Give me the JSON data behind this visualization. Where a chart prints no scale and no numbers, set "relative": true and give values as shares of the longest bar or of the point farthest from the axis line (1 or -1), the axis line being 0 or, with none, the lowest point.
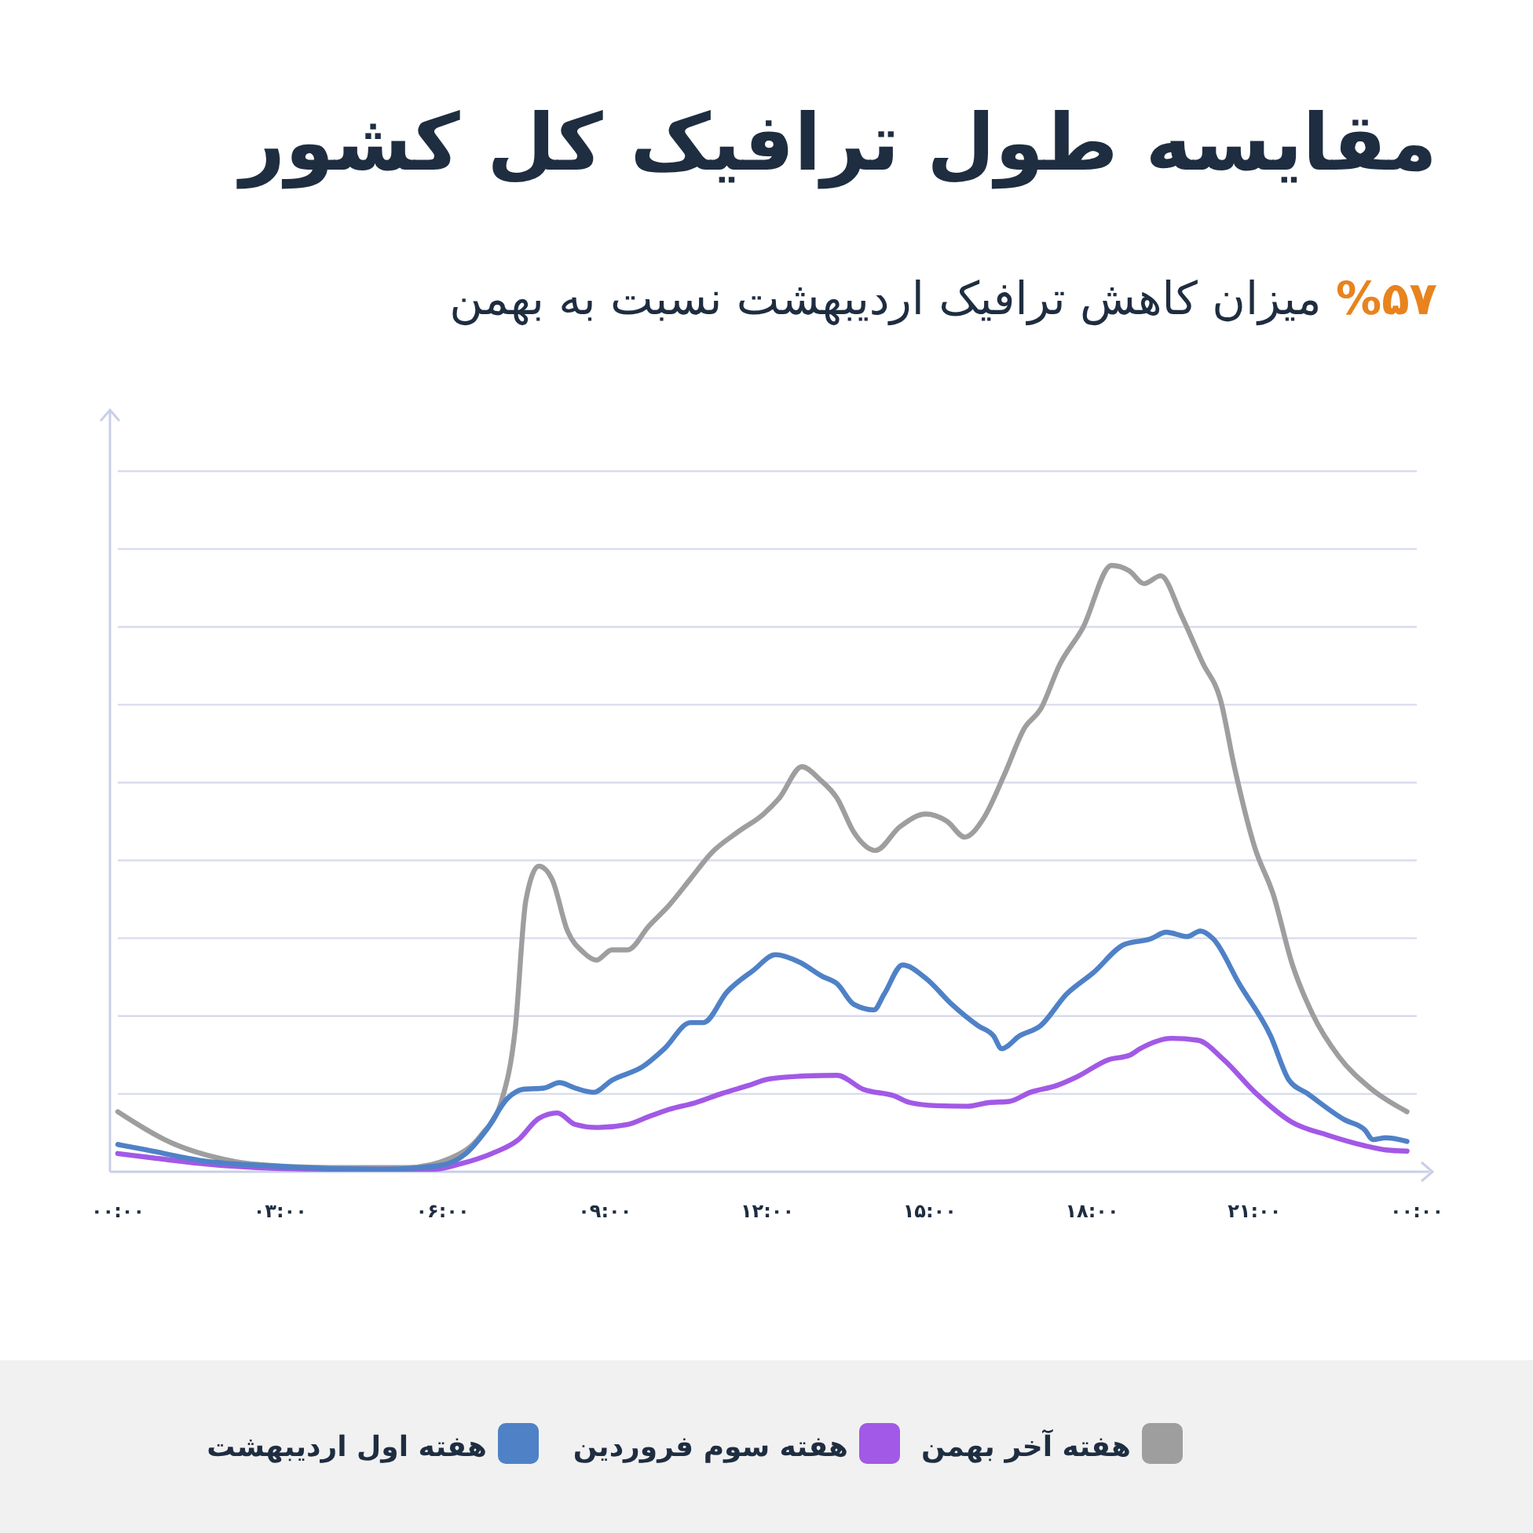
{
  "chart_data": {
    "type": "line",
    "title": "مقایسه طول ترافیک کل کشور",
    "subtitle": "%۵۷ میزان کاهش ترافیک اردیبهشت نسبت به بهمن",
    "relative": true,
    "grid": true,
    "legend": "bottom",
    "marker": "none",
    "line_style": "solid",
    "tick_labels": "x",
    "xlim": [
      0,
      24
    ],
    "xticks": [
      {
        "value": 0,
        "label": "۰۰:۰۰"
      },
      {
        "value": 3,
        "label": "۰۳:۰۰"
      },
      {
        "value": 6,
        "label": "۰۶:۰۰"
      },
      {
        "value": 9,
        "label": "۰۹:۰۰"
      },
      {
        "value": 12,
        "label": "۱۲:۰۰"
      },
      {
        "value": 15,
        "label": "۱۵:۰۰"
      },
      {
        "value": 18,
        "label": "۱۸:۰۰"
      },
      {
        "value": 21,
        "label": "۲۱:۰۰"
      },
      {
        "value": 24,
        "label": "۰۰:۰۰"
      }
    ],
    "series": [
      {
        "name": "هفته آخر بهمن",
        "color": "#9e9e9e",
        "x": [
          0,
          1.01,
          1.79,
          2.46,
          3.91,
          5.36,
          6.14,
          6.71,
          7.1,
          7.34,
          7.54,
          7.78,
          8.02,
          8.31,
          8.6,
          8.84,
          9.13,
          9.42,
          9.81,
          10.19,
          10.58,
          10.97,
          11.45,
          11.93,
          12.22,
          12.64,
          12.97,
          13.29,
          13.6,
          14.0,
          14.45,
          14.93,
          15.32,
          15.65,
          15.99,
          16.38,
          16.76,
          17.05,
          17.4,
          17.83,
          18.36,
          18.69,
          18.96,
          19.27,
          19.65,
          20.04,
          20.38,
          20.62,
          21.01,
          21.35,
          21.69,
          22.08,
          22.56,
          23.14,
          23.82
        ],
        "values": [
          0.099,
          0.047,
          0.024,
          0.013,
          0.007,
          0.007,
          0.022,
          0.06,
          0.12,
          0.233,
          0.448,
          0.504,
          0.483,
          0.397,
          0.362,
          0.349,
          0.366,
          0.366,
          0.405,
          0.44,
          0.483,
          0.526,
          0.56,
          0.59,
          0.616,
          0.668,
          0.647,
          0.616,
          0.56,
          0.53,
          0.569,
          0.59,
          0.578,
          0.552,
          0.582,
          0.655,
          0.733,
          0.763,
          0.836,
          0.897,
          1,
          0.991,
          0.97,
          0.983,
          0.918,
          0.84,
          0.776,
          0.672,
          0.534,
          0.457,
          0.345,
          0.259,
          0.19,
          0.138,
          0.099
        ]
      },
      {
        "name": "هفته سوم فروردین",
        "color": "#a259e6",
        "x": [
          0,
          0.72,
          1.98,
          3.91,
          5.85,
          6.33,
          6.91,
          7.39,
          7.78,
          8.12,
          8.45,
          8.84,
          9.42,
          9.81,
          10.19,
          10.68,
          11.16,
          11.64,
          12.03,
          12.71,
          13.29,
          13.77,
          14.35,
          14.64,
          15.12,
          15.7,
          16.09,
          16.47,
          16.86,
          17.34,
          17.73,
          18.31,
          18.69,
          18.89,
          19.47,
          19.95,
          20.43,
          21.01,
          21.69,
          22.37,
          23.04,
          23.43,
          23.82
        ],
        "values": [
          0.03,
          0.022,
          0.01,
          0.004,
          0.004,
          0.013,
          0.03,
          0.052,
          0.088,
          0.097,
          0.078,
          0.073,
          0.078,
          0.091,
          0.103,
          0.114,
          0.129,
          0.142,
          0.153,
          0.158,
          0.159,
          0.136,
          0.125,
          0.114,
          0.109,
          0.108,
          0.114,
          0.116,
          0.131,
          0.142,
          0.157,
          0.185,
          0.192,
          0.203,
          0.22,
          0.217,
          0.185,
          0.131,
          0.082,
          0.06,
          0.043,
          0.036,
          0.034
        ]
      },
      {
        "name": "هفته اول اردیبهشت",
        "color": "#4f81c7",
        "x": [
          0,
          0.53,
          1.5,
          2.95,
          4.88,
          5.94,
          6.43,
          6.81,
          7.2,
          7.49,
          7.87,
          8.16,
          8.45,
          8.79,
          9.13,
          9.71,
          10.1,
          10.58,
          10.82,
          11.26,
          11.74,
          12.15,
          12.61,
          13.0,
          13.29,
          13.6,
          13.97,
          14.16,
          14.5,
          14.93,
          15.41,
          15.89,
          16.18,
          16.33,
          16.66,
          17.05,
          17.53,
          18.02,
          18.6,
          19.08,
          19.37,
          19.76,
          20.0,
          20.24,
          20.72,
          21.3,
          21.64,
          21.98,
          22.66,
          23.04,
          23.19,
          23.43,
          23.82
        ],
        "values": [
          0.045,
          0.036,
          0.019,
          0.009,
          0.004,
          0.01,
          0.03,
          0.069,
          0.121,
          0.136,
          0.138,
          0.147,
          0.138,
          0.131,
          0.151,
          0.174,
          0.203,
          0.246,
          0.246,
          0.297,
          0.332,
          0.358,
          0.345,
          0.323,
          0.31,
          0.276,
          0.267,
          0.293,
          0.341,
          0.319,
          0.276,
          0.241,
          0.224,
          0.203,
          0.224,
          0.241,
          0.293,
          0.328,
          0.375,
          0.384,
          0.395,
          0.388,
          0.397,
          0.384,
          0.31,
          0.224,
          0.151,
          0.129,
          0.086,
          0.069,
          0.053,
          0.056,
          0.05
        ]
      }
    ]
  }
}
